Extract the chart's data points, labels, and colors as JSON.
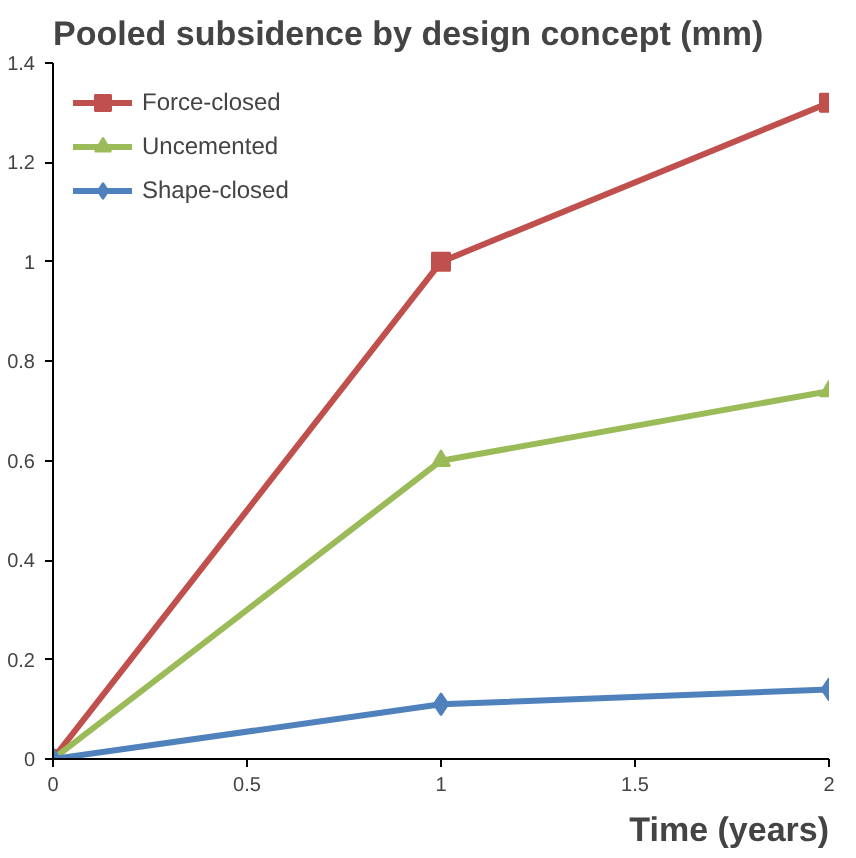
{
  "chart_data": {
    "type": "line",
    "title": "Pooled subsidence by design concept (mm)",
    "xlabel": "Time (years)",
    "x": [
      0,
      1,
      2
    ],
    "series": [
      {
        "name": "Force-closed",
        "color": "#c0504d",
        "marker": "square",
        "values": [
          0,
          1.0,
          1.32
        ]
      },
      {
        "name": "Uncemented",
        "color": "#9bbb59",
        "marker": "triangle",
        "values": [
          0,
          0.6,
          0.74
        ]
      },
      {
        "name": "Shape-closed",
        "color": "#4f81bd",
        "marker": "diamond",
        "values": [
          0,
          0.11,
          0.14
        ]
      }
    ],
    "xlim": [
      0,
      2
    ],
    "xticks": [
      0,
      0.5,
      1,
      1.5,
      2
    ],
    "ylim": [
      0,
      1.4
    ],
    "yticks": [
      0,
      0.2,
      0.4,
      0.6,
      0.8,
      1,
      1.2,
      1.4
    ],
    "grid": false,
    "legend": "top left",
    "line_style": "solid"
  }
}
